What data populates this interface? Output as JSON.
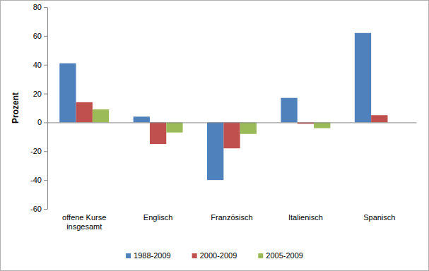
{
  "chart_data": {
    "type": "bar",
    "ylabel": "Prozent",
    "categories": [
      "offene Kurse insgesamt",
      "Englisch",
      "Französisch",
      "Italienisch",
      "Spanisch"
    ],
    "series": [
      {
        "name": "1988-2009",
        "color": "#4f81bd",
        "values": [
          41,
          4,
          -40,
          17,
          62
        ]
      },
      {
        "name": "2000-2009",
        "color": "#c0504d",
        "values": [
          14,
          -15,
          -18,
          -1,
          5
        ]
      },
      {
        "name": "2005-2009",
        "color": "#9bbb59",
        "values": [
          9,
          -7,
          -8,
          -4,
          null
        ]
      }
    ],
    "ylim": [
      -60,
      80
    ],
    "yticks": [
      -60,
      -40,
      -20,
      0,
      20,
      40,
      60,
      80
    ],
    "grid": false,
    "legend": "bottom"
  }
}
